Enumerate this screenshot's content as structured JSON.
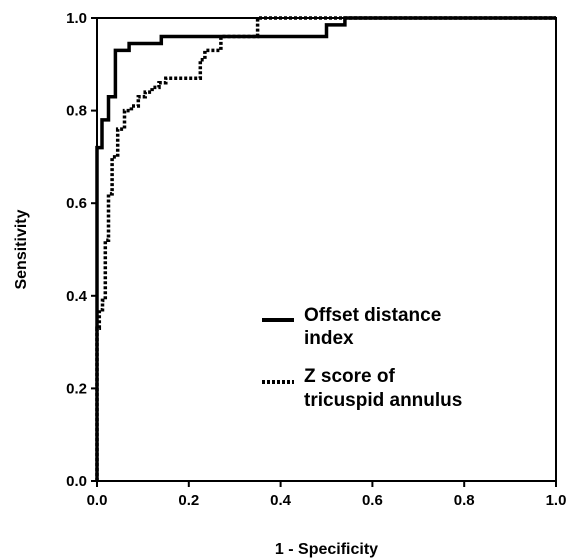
{
  "chart_data": {
    "type": "line",
    "title": "",
    "xlabel": "1 - Specificity",
    "ylabel": "Sensitivity",
    "xlim": [
      0,
      1
    ],
    "ylim": [
      0,
      1
    ],
    "x_ticks": [
      "0.0",
      "0.2",
      "0.4",
      "0.6",
      "0.8",
      "1.0"
    ],
    "y_ticks": [
      "0.0",
      "0.2",
      "0.4",
      "0.6",
      "0.8",
      "1.0"
    ],
    "x_tick_values": [
      0,
      0.2,
      0.4,
      0.6,
      0.8,
      1.0
    ],
    "y_tick_values": [
      0,
      0.2,
      0.4,
      0.6,
      0.8,
      1.0
    ],
    "grid": false,
    "legend_position": "center-right",
    "series": [
      {
        "name_lines": [
          "Offset distance",
          "index"
        ],
        "style": "solid",
        "color": "#000000",
        "x": [
          0,
          0,
          0.011,
          0.011,
          0.025,
          0.025,
          0.04,
          0.04,
          0.055,
          0.055,
          0.07,
          0.07,
          0.085,
          0.085,
          0.14,
          0.14,
          0.5,
          0.5,
          0.54,
          0.54,
          1.0
        ],
        "y": [
          0,
          0.72,
          0.72,
          0.78,
          0.78,
          0.83,
          0.83,
          0.93,
          0.93,
          0.93,
          0.93,
          0.945,
          0.945,
          0.945,
          0.945,
          0.96,
          0.96,
          0.985,
          0.985,
          1.0,
          1.0
        ]
      },
      {
        "name_lines": [
          "Z score of",
          "tricuspid annulus"
        ],
        "style": "dotted",
        "color": "#000000",
        "x": [
          0,
          0,
          0.005,
          0.005,
          0.012,
          0.012,
          0.018,
          0.018,
          0.025,
          0.025,
          0.033,
          0.033,
          0.045,
          0.045,
          0.06,
          0.06,
          0.075,
          0.075,
          0.09,
          0.09,
          0.105,
          0.105,
          0.12,
          0.12,
          0.135,
          0.135,
          0.15,
          0.15,
          0.165,
          0.165,
          0.225,
          0.225,
          0.235,
          0.235,
          0.27,
          0.27,
          0.35,
          0.35,
          1.0
        ],
        "y": [
          0,
          0.33,
          0.33,
          0.37,
          0.37,
          0.39,
          0.39,
          0.52,
          0.52,
          0.62,
          0.62,
          0.7,
          0.7,
          0.76,
          0.76,
          0.8,
          0.8,
          0.81,
          0.81,
          0.83,
          0.83,
          0.84,
          0.84,
          0.85,
          0.85,
          0.86,
          0.86,
          0.87,
          0.87,
          0.87,
          0.87,
          0.91,
          0.91,
          0.93,
          0.93,
          0.96,
          0.96,
          1.0,
          1.0
        ]
      }
    ]
  }
}
